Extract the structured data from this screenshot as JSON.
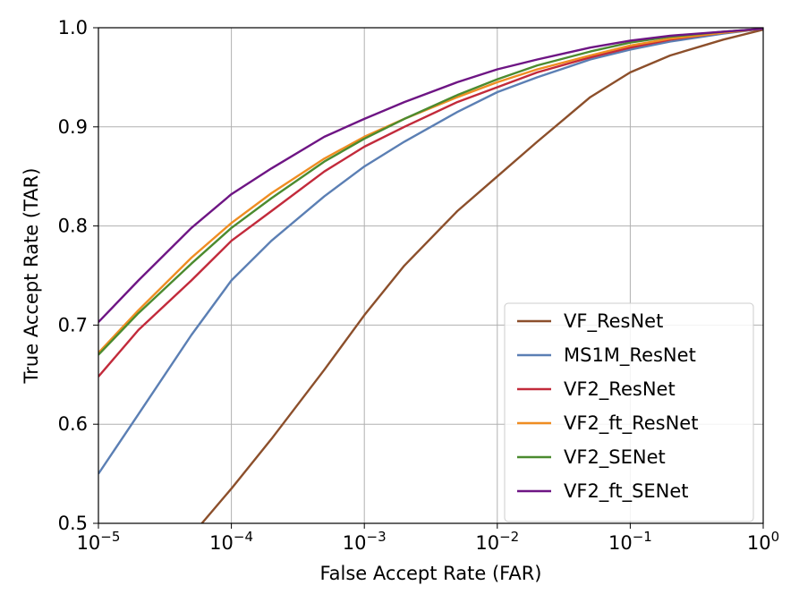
{
  "chart_data": {
    "type": "line",
    "xlabel": "False Accept Rate (FAR)",
    "ylabel": "True Accept Rate (TAR)",
    "xscale": "log",
    "xlim": [
      1e-05,
      1
    ],
    "ylim": [
      0.5,
      1.0
    ],
    "grid": true,
    "legend_position": "lower-right",
    "x_ticks": [
      {
        "value": 1e-05,
        "base": "10",
        "exp": "−5"
      },
      {
        "value": 0.0001,
        "base": "10",
        "exp": "−4"
      },
      {
        "value": 0.001,
        "base": "10",
        "exp": "−3"
      },
      {
        "value": 0.01,
        "base": "10",
        "exp": "−2"
      },
      {
        "value": 0.1,
        "base": "10",
        "exp": "−1"
      },
      {
        "value": 1,
        "base": "10",
        "exp": "0"
      }
    ],
    "y_ticks": [
      {
        "value": 0.5,
        "label": "0.5"
      },
      {
        "value": 0.6,
        "label": "0.6"
      },
      {
        "value": 0.7,
        "label": "0.7"
      },
      {
        "value": 0.8,
        "label": "0.8"
      },
      {
        "value": 0.9,
        "label": "0.9"
      },
      {
        "value": 1.0,
        "label": "1.0"
      }
    ],
    "series": [
      {
        "name": "VF_ResNet",
        "color": "#8c4f2b",
        "x": [
          6e-05,
          0.0001,
          0.0002,
          0.0005,
          0.001,
          0.002,
          0.005,
          0.01,
          0.02,
          0.05,
          0.1,
          0.2,
          0.5,
          1
        ],
        "y": [
          0.5,
          0.535,
          0.585,
          0.655,
          0.71,
          0.76,
          0.815,
          0.85,
          0.885,
          0.93,
          0.955,
          0.972,
          0.988,
          0.998
        ]
      },
      {
        "name": "MS1M_ResNet",
        "color": "#5b7fb4",
        "x": [
          1e-05,
          2e-05,
          5e-05,
          0.0001,
          0.0002,
          0.0005,
          0.001,
          0.002,
          0.005,
          0.01,
          0.02,
          0.05,
          0.1,
          0.2,
          0.5,
          1
        ],
        "y": [
          0.55,
          0.61,
          0.69,
          0.745,
          0.785,
          0.83,
          0.86,
          0.885,
          0.915,
          0.935,
          0.95,
          0.968,
          0.978,
          0.986,
          0.994,
          0.999
        ]
      },
      {
        "name": "VF2_ResNet",
        "color": "#c22a3b",
        "x": [
          1e-05,
          2e-05,
          5e-05,
          0.0001,
          0.0002,
          0.0005,
          0.001,
          0.002,
          0.005,
          0.01,
          0.02,
          0.05,
          0.1,
          0.2,
          0.5,
          1
        ],
        "y": [
          0.648,
          0.695,
          0.745,
          0.785,
          0.815,
          0.855,
          0.88,
          0.9,
          0.925,
          0.94,
          0.955,
          0.97,
          0.98,
          0.988,
          0.995,
          0.999
        ]
      },
      {
        "name": "VF2_ft_ResNet",
        "color": "#ef8d22",
        "x": [
          1e-05,
          2e-05,
          5e-05,
          0.0001,
          0.0002,
          0.0005,
          0.001,
          0.002,
          0.005,
          0.01,
          0.02,
          0.05,
          0.1,
          0.2,
          0.5,
          1
        ],
        "y": [
          0.672,
          0.715,
          0.768,
          0.803,
          0.833,
          0.868,
          0.89,
          0.908,
          0.93,
          0.945,
          0.958,
          0.972,
          0.982,
          0.989,
          0.995,
          0.999
        ]
      },
      {
        "name": "VF2_SENet",
        "color": "#4b8b2f",
        "x": [
          1e-05,
          2e-05,
          5e-05,
          0.0001,
          0.0002,
          0.0005,
          0.001,
          0.002,
          0.005,
          0.01,
          0.02,
          0.05,
          0.1,
          0.2,
          0.5,
          1
        ],
        "y": [
          0.67,
          0.712,
          0.762,
          0.798,
          0.828,
          0.865,
          0.888,
          0.908,
          0.932,
          0.948,
          0.962,
          0.976,
          0.985,
          0.991,
          0.996,
          0.999
        ]
      },
      {
        "name": "VF2_ft_SENet",
        "color": "#6e1584",
        "x": [
          1e-05,
          2e-05,
          5e-05,
          0.0001,
          0.0002,
          0.0005,
          0.001,
          0.002,
          0.005,
          0.01,
          0.02,
          0.05,
          0.1,
          0.2,
          0.5,
          1
        ],
        "y": [
          0.703,
          0.745,
          0.798,
          0.832,
          0.858,
          0.89,
          0.908,
          0.925,
          0.945,
          0.958,
          0.968,
          0.98,
          0.987,
          0.992,
          0.996,
          0.999
        ]
      }
    ]
  }
}
